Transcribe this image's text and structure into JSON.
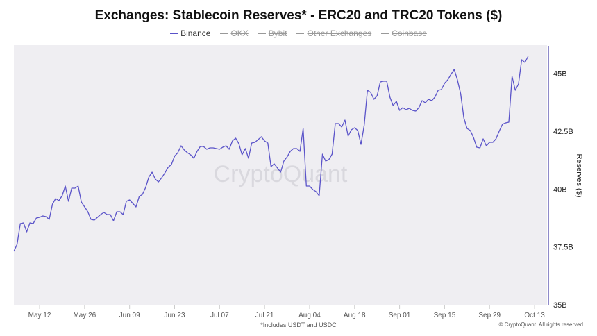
{
  "title": "Exchanges: Stablecoin Reserves* - ERC20 and TRC20 Tokens ($)",
  "legend": [
    {
      "label": "Binance",
      "active": true
    },
    {
      "label": "OKX",
      "active": false
    },
    {
      "label": "Bybit",
      "active": false
    },
    {
      "label": "Other Exchanges",
      "active": false
    },
    {
      "label": "Coinbase",
      "active": false
    }
  ],
  "footnote": "*Includes USDT and USDC",
  "copyright": "© CryptoQuant. All rights reserved",
  "watermark": "CryptoQuant",
  "colors": {
    "line": "#5a53c9",
    "plot_bg": "#efeef2",
    "axis": "#6a63b8"
  },
  "chart_data": {
    "type": "line",
    "title": "Exchanges: Stablecoin Reserves* - ERC20 and TRC20 Tokens ($)",
    "xlabel": "",
    "ylabel": "Reserves ($)",
    "y_axis_side": "right",
    "ylim": [
      35,
      46.25
    ],
    "y_unit": "B",
    "yticks": [
      {
        "value": 35,
        "label": "35B"
      },
      {
        "value": 37.5,
        "label": "37.5B"
      },
      {
        "value": 40,
        "label": "40B"
      },
      {
        "value": 42.5,
        "label": "42.5B"
      },
      {
        "value": 45,
        "label": "45B"
      }
    ],
    "x_start": "May 04",
    "x_days_total": 165,
    "xticks": [
      {
        "day": 8,
        "label": "May 12"
      },
      {
        "day": 22,
        "label": "May 26"
      },
      {
        "day": 36,
        "label": "Jun 09"
      },
      {
        "day": 50,
        "label": "Jun 23"
      },
      {
        "day": 64,
        "label": "Jul 07"
      },
      {
        "day": 78,
        "label": "Jul 21"
      },
      {
        "day": 92,
        "label": "Aug 04"
      },
      {
        "day": 106,
        "label": "Aug 18"
      },
      {
        "day": 120,
        "label": "Sep 01"
      },
      {
        "day": 134,
        "label": "Sep 15"
      },
      {
        "day": 148,
        "label": "Sep 29"
      },
      {
        "day": 162,
        "label": "Oct 13"
      }
    ],
    "grid": false,
    "legend_position": "top-center",
    "series": [
      {
        "name": "Binance",
        "values": [
          37.31,
          37.61,
          38.51,
          38.54,
          38.15,
          38.54,
          38.51,
          38.75,
          38.78,
          38.84,
          38.81,
          38.69,
          39.35,
          39.59,
          39.5,
          39.71,
          40.13,
          39.47,
          40.04,
          40.04,
          40.13,
          39.44,
          39.23,
          39.02,
          38.69,
          38.66,
          38.78,
          38.9,
          38.99,
          38.9,
          38.9,
          38.63,
          39.02,
          39.02,
          38.9,
          39.47,
          39.53,
          39.38,
          39.23,
          39.68,
          39.77,
          40.07,
          40.52,
          40.73,
          40.43,
          40.31,
          40.49,
          40.7,
          40.94,
          41.06,
          41.42,
          41.57,
          41.87,
          41.69,
          41.57,
          41.48,
          41.33,
          41.63,
          41.84,
          41.84,
          41.72,
          41.78,
          41.78,
          41.75,
          41.72,
          41.81,
          41.87,
          41.72,
          42.08,
          42.2,
          41.96,
          41.48,
          41.75,
          41.33,
          41.99,
          42.02,
          42.14,
          42.26,
          42.08,
          41.99,
          40.97,
          41.09,
          40.91,
          40.73,
          41.21,
          41.39,
          41.63,
          41.75,
          41.75,
          41.63,
          42.62,
          40.13,
          40.13,
          39.98,
          39.89,
          39.71,
          41.51,
          41.21,
          41.27,
          41.51,
          42.83,
          42.83,
          42.68,
          42.98,
          42.29,
          42.56,
          42.65,
          42.53,
          41.93,
          42.77,
          44.27,
          44.18,
          43.88,
          44.03,
          44.63,
          44.66,
          44.66,
          43.97,
          43.61,
          43.79,
          43.4,
          43.52,
          43.43,
          43.49,
          43.4,
          43.37,
          43.52,
          43.82,
          43.73,
          43.88,
          43.82,
          43.97,
          44.27,
          44.3,
          44.57,
          44.72,
          44.96,
          45.17,
          44.72,
          44.12,
          43.07,
          42.62,
          42.53,
          42.23,
          41.81,
          41.78,
          42.17,
          41.87,
          42.02,
          42.02,
          42.17,
          42.5,
          42.8,
          42.86,
          42.89,
          44.87,
          44.27,
          44.54,
          45.59,
          45.47,
          45.74
        ]
      }
    ]
  }
}
